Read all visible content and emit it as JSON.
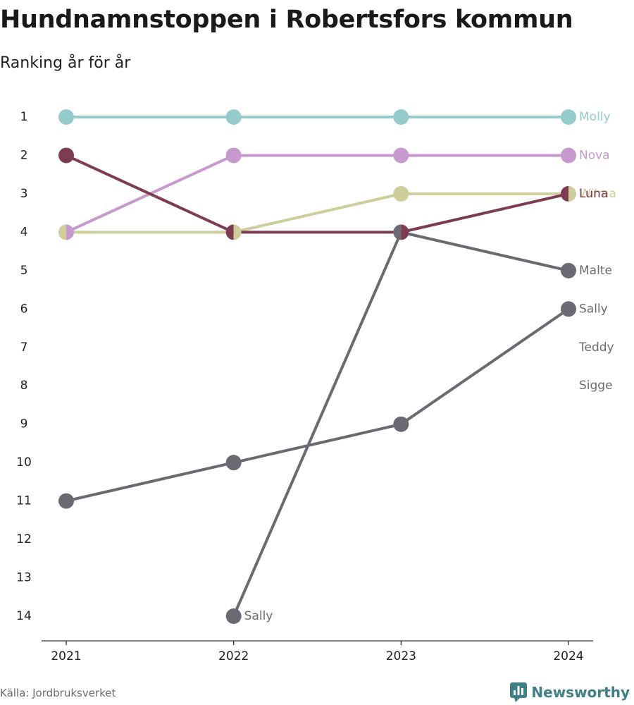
{
  "header": {
    "title": "Hundnamnstoppen i Robertsfors kommun",
    "subtitle": "Ranking år för år"
  },
  "footer": {
    "source": "Källa: Jordbruksverket",
    "brand": "Newsworthy",
    "brand_icon": "bar-chart-speech-bubble-icon",
    "brand_color": "#3f7f86"
  },
  "chart_data": {
    "type": "line",
    "x": [
      "2021",
      "2022",
      "2023",
      "2024"
    ],
    "y_ticks": [
      1,
      2,
      3,
      4,
      5,
      6,
      7,
      8,
      9,
      10,
      11,
      12,
      13,
      14
    ],
    "ylim": [
      1,
      14
    ],
    "y_inverted": true,
    "grid": false,
    "legend": "direct labels at right end",
    "xlabel": "",
    "ylabel": "",
    "series": [
      {
        "name": "Molly",
        "color": "#96cbcb",
        "values": [
          1,
          1,
          1,
          1
        ]
      },
      {
        "name": "Nova",
        "color": "#c799cf",
        "values": [
          4,
          2,
          2,
          2
        ]
      },
      {
        "name": "Wilma",
        "color": "#cece9b",
        "values": [
          4,
          4,
          3,
          3
        ]
      },
      {
        "name": "Luna",
        "color": "#7e3c52",
        "values": [
          2,
          4,
          4,
          3
        ]
      },
      {
        "name": "Malte",
        "color": "#6b6a72",
        "values": [
          null,
          14,
          4,
          5
        ]
      },
      {
        "name": "Sally",
        "color": "#6b6a72",
        "values": [
          11,
          10,
          9,
          6
        ]
      },
      {
        "name": "Teddy",
        "color": "#6b6a72",
        "values": [
          null,
          null,
          null,
          7
        ]
      },
      {
        "name": "Sigge",
        "color": "#6b6a72",
        "values": [
          null,
          null,
          null,
          8
        ]
      }
    ],
    "annotations": [
      {
        "text": "Sally",
        "x": "2022",
        "y": 14
      }
    ]
  }
}
